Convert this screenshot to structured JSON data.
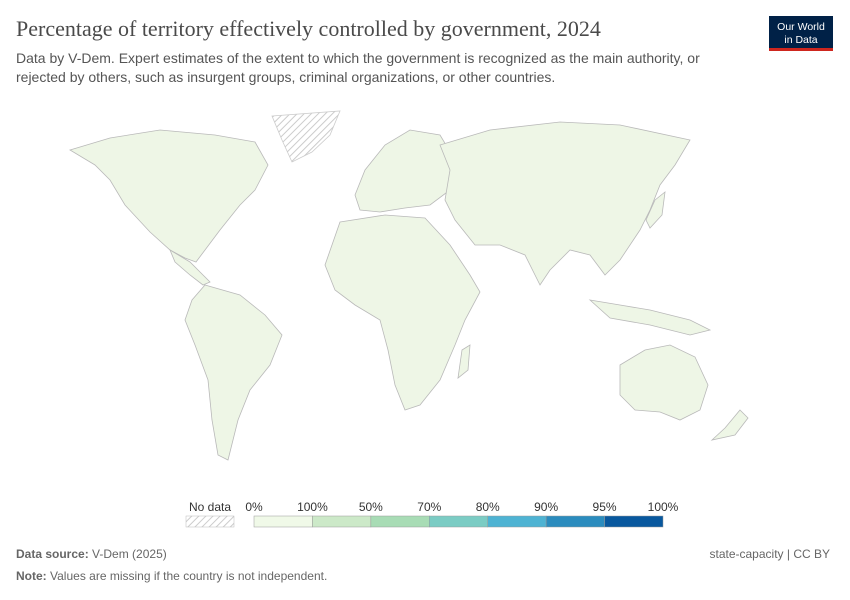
{
  "header": {
    "title": "Percentage of territory effectively controlled by government, 2024",
    "subtitle": [
      "Data by V-Dem. Expert estimates of the extent to which the government is recognized as the main authority, or",
      "rejected by others, such as insurgent groups, criminal organizations, or other countries."
    ]
  },
  "logo": {
    "lines": [
      "Our World",
      "in Data"
    ]
  },
  "legend": {
    "no_data": "No data",
    "ticks": [
      "0%",
      "100%",
      "50%",
      "70%",
      "80%",
      "90%",
      "95%",
      "100%"
    ],
    "colors": [
      "#f0f9e8",
      "#cce9c8",
      "#a8dcb5",
      "#7bccc4",
      "#4eb3d3",
      "#2b8cbe",
      "#08589e"
    ]
  },
  "footer": {
    "source_label": "Data source:",
    "source": "V-Dem (2025)",
    "license": "state-capacity | CC BY",
    "note_label": "Note:",
    "note": "Values are missing if the country is not independent."
  }
}
